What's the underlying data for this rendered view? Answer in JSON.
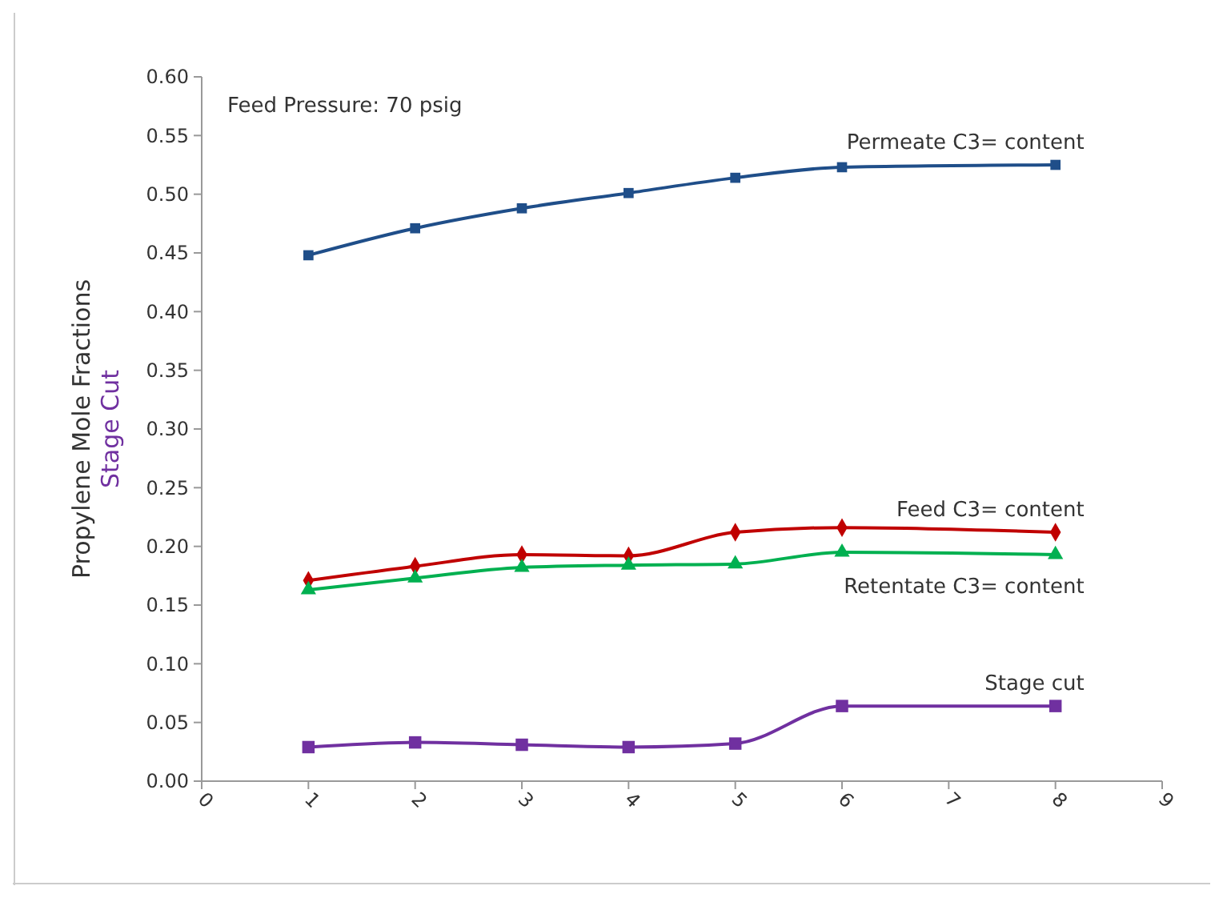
{
  "chart_data": {
    "type": "line",
    "ylabel": "Propylene Mole Fractions\nStage Cut",
    "annotations": [
      "Feed Pressure: 70 psig"
    ],
    "xlim": [
      0,
      9
    ],
    "xticks": [
      0,
      1,
      2,
      3,
      4,
      5,
      6,
      7,
      8,
      9
    ],
    "ylim": [
      0,
      0.6
    ],
    "yticks": [
      {
        "value": 0,
        "label": "0.00"
      },
      0.05,
      {
        "value": 0.1,
        "label": "0.10"
      },
      0.15,
      {
        "value": 0.2,
        "label": "0.20"
      },
      0.25,
      {
        "value": 0.3,
        "label": "0.30"
      },
      0.35,
      {
        "value": 0.4,
        "label": "0.40"
      },
      0.45,
      {
        "value": 0.5,
        "label": "0.50"
      },
      0.55,
      {
        "value": 0.6,
        "label": "0.60"
      }
    ],
    "grid": false,
    "series": [
      {
        "name": "Permeate C3= content",
        "color": "#1f4e89",
        "marker": "square",
        "x": [
          1,
          2,
          3,
          4,
          5,
          6,
          8
        ],
        "values": [
          0.448,
          0.471,
          0.488,
          0.501,
          0.514,
          0.523,
          0.525
        ]
      },
      {
        "name": "Feed C3= content",
        "color": "#c00000",
        "marker": "diamond",
        "x": [
          1,
          2,
          3,
          4,
          5,
          6,
          8
        ],
        "values": [
          0.171,
          0.183,
          0.193,
          0.192,
          0.212,
          0.216,
          0.212
        ]
      },
      {
        "name": "Retentate C3= content",
        "color": "#00b050",
        "marker": "triangle",
        "x": [
          1,
          2,
          3,
          4,
          5,
          6,
          8
        ],
        "values": [
          0.163,
          0.173,
          0.182,
          0.184,
          0.185,
          0.195,
          0.193
        ]
      },
      {
        "name": "Stage cut",
        "color": "#7030a0",
        "marker": "square",
        "x": [
          1,
          2,
          3,
          4,
          5,
          6,
          8
        ],
        "values": [
          0.029,
          0.033,
          0.031,
          0.029,
          0.032,
          0.064,
          0.064
        ]
      }
    ]
  }
}
